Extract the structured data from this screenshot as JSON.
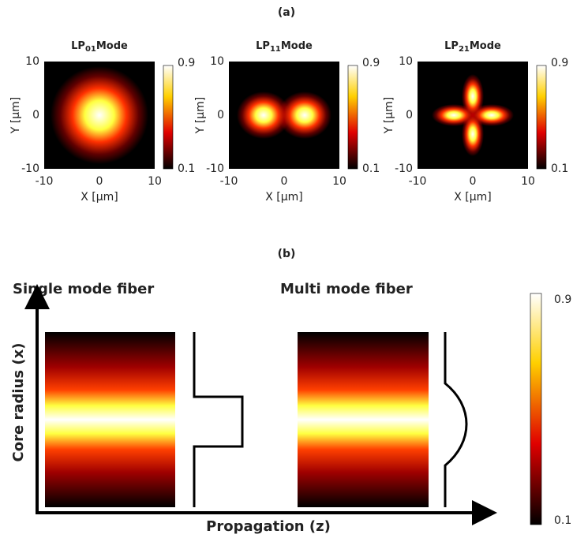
{
  "panel_a": {
    "label": "(a)",
    "plots": [
      {
        "title": {
          "prefix": "LP",
          "sub": "01",
          "suffix": "Mode"
        },
        "xlabel": "X [μm]",
        "ylabel": "Y [μm]",
        "xticks": [
          -10,
          0,
          10
        ],
        "yticks": [
          10,
          0,
          -10
        ],
        "colorbar": [
          0.9,
          0.1
        ]
      },
      {
        "title": {
          "prefix": "LP",
          "sub": "11",
          "suffix": "Mode"
        },
        "xlabel": "X [μm]",
        "ylabel": "Y [μm]",
        "xticks": [
          -10,
          0,
          10
        ],
        "yticks": [
          10,
          0,
          -10
        ],
        "colorbar": [
          0.9,
          0.1
        ]
      },
      {
        "title": {
          "prefix": "LP",
          "sub": "21",
          "suffix": "Mode"
        },
        "xlabel": "X [μm]",
        "ylabel": "Y [μm]",
        "xticks": [
          -10,
          0,
          10
        ],
        "yticks": [
          10,
          0,
          -10
        ],
        "colorbar": [
          0.9,
          0.1
        ]
      }
    ]
  },
  "panel_b": {
    "label": "(b)",
    "left_title": "Single mode fiber",
    "right_title": "Multi mode fiber",
    "ylabel": "Core radius (x)",
    "xlabel": "Propagation (z)",
    "colorbar": [
      0.9,
      0.1
    ]
  }
}
